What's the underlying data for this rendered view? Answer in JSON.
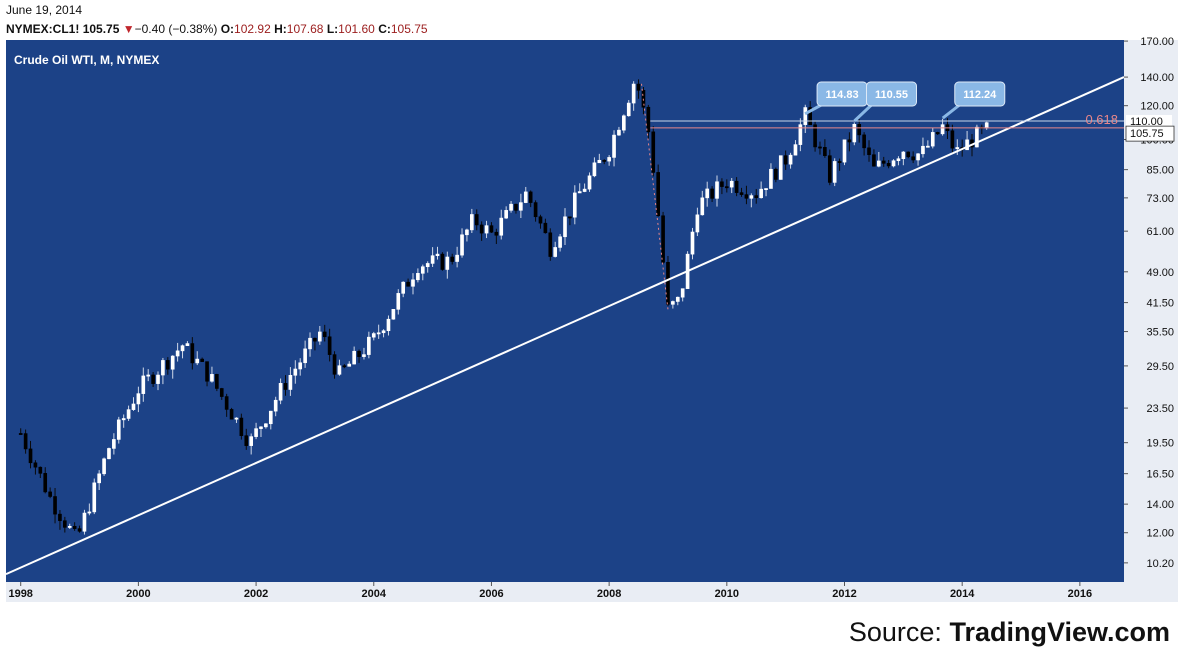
{
  "header": {
    "date": "June 19, 2014",
    "symbol": "NYMEX:CL1!",
    "last": "105.75",
    "change_arrow": "▼",
    "change": "−0.40 (−0.38%)",
    "open_label": "O:",
    "open": "102.92",
    "high_label": "H:",
    "high": "107.68",
    "low_label": "L:",
    "low": "101.60",
    "close_label": "C:",
    "close": "105.75"
  },
  "source": {
    "prefix": "Source: ",
    "brand": "TradingView.com"
  },
  "colors": {
    "plot_bg": "#1c4287",
    "frame_bg": "#e9edf4",
    "up_candle": "#ffffff",
    "down_candle": "#000000",
    "trendline": "#ffffff",
    "fib_line": "#e8878a",
    "callout": "#8ab8e6"
  },
  "chart_data": {
    "type": "candlestick",
    "title": "Crude Oil WTI, M, NYMEX",
    "scale": "log",
    "ylim": [
      9.2,
      171
    ],
    "xlim": [
      1997.75,
      2016.75
    ],
    "y_ticks": [
      "170.00",
      "140.00",
      "120.00",
      "100.00",
      "85.00",
      "73.00",
      "61.00",
      "49.00",
      "41.50",
      "35.50",
      "29.50",
      "23.50",
      "19.50",
      "16.50",
      "14.00",
      "12.00",
      "10.20"
    ],
    "x_ticks": [
      "1998",
      "2000",
      "2002",
      "2004",
      "2006",
      "2008",
      "2010",
      "2012",
      "2014",
      "2016"
    ],
    "last_price_label": "105.75",
    "level_label": "110.00",
    "fib_level": {
      "label": "0.618",
      "value": 106.5
    },
    "resistance_level": 110.5,
    "callouts": [
      {
        "label": "114.83",
        "x": 2011.33,
        "value": 114.83
      },
      {
        "label": "110.55",
        "x": 2012.17,
        "value": 110.55
      },
      {
        "label": "112.24",
        "x": 2013.67,
        "value": 112.24
      }
    ],
    "trendline": {
      "x": [
        1997.75,
        2016.75
      ],
      "value": [
        9.6,
        140.0
      ]
    },
    "anchors": [
      {
        "x": 1998.0,
        "value": 20.5
      },
      {
        "x": 1998.5,
        "value": 14.5
      },
      {
        "x": 1998.95,
        "value": 11.5
      },
      {
        "x": 1999.5,
        "value": 19.0
      },
      {
        "x": 2000.0,
        "value": 26.0
      },
      {
        "x": 2000.75,
        "value": 33.0
      },
      {
        "x": 2001.2,
        "value": 28.0
      },
      {
        "x": 2001.9,
        "value": 19.5
      },
      {
        "x": 2002.5,
        "value": 27.0
      },
      {
        "x": 2003.1,
        "value": 35.5
      },
      {
        "x": 2003.4,
        "value": 28.0
      },
      {
        "x": 2004.0,
        "value": 34.0
      },
      {
        "x": 2004.75,
        "value": 51.0
      },
      {
        "x": 2005.3,
        "value": 52.0
      },
      {
        "x": 2005.7,
        "value": 65.0
      },
      {
        "x": 2006.0,
        "value": 60.0
      },
      {
        "x": 2006.6,
        "value": 75.0
      },
      {
        "x": 2007.0,
        "value": 56.0
      },
      {
        "x": 2007.5,
        "value": 75.0
      },
      {
        "x": 2008.0,
        "value": 95.0
      },
      {
        "x": 2008.45,
        "value": 140.0
      },
      {
        "x": 2008.7,
        "value": 100.0
      },
      {
        "x": 2009.0,
        "value": 40.0
      },
      {
        "x": 2009.2,
        "value": 42.0
      },
      {
        "x": 2009.5,
        "value": 70.0
      },
      {
        "x": 2010.0,
        "value": 80.0
      },
      {
        "x": 2010.5,
        "value": 75.0
      },
      {
        "x": 2011.0,
        "value": 90.0
      },
      {
        "x": 2011.33,
        "value": 114.0
      },
      {
        "x": 2011.75,
        "value": 82.0
      },
      {
        "x": 2012.17,
        "value": 106.0
      },
      {
        "x": 2012.5,
        "value": 85.0
      },
      {
        "x": 2013.0,
        "value": 95.0
      },
      {
        "x": 2013.3,
        "value": 92.0
      },
      {
        "x": 2013.67,
        "value": 107.0
      },
      {
        "x": 2013.9,
        "value": 93.0
      },
      {
        "x": 2014.2,
        "value": 101.0
      },
      {
        "x": 2014.45,
        "value": 105.75
      }
    ]
  }
}
